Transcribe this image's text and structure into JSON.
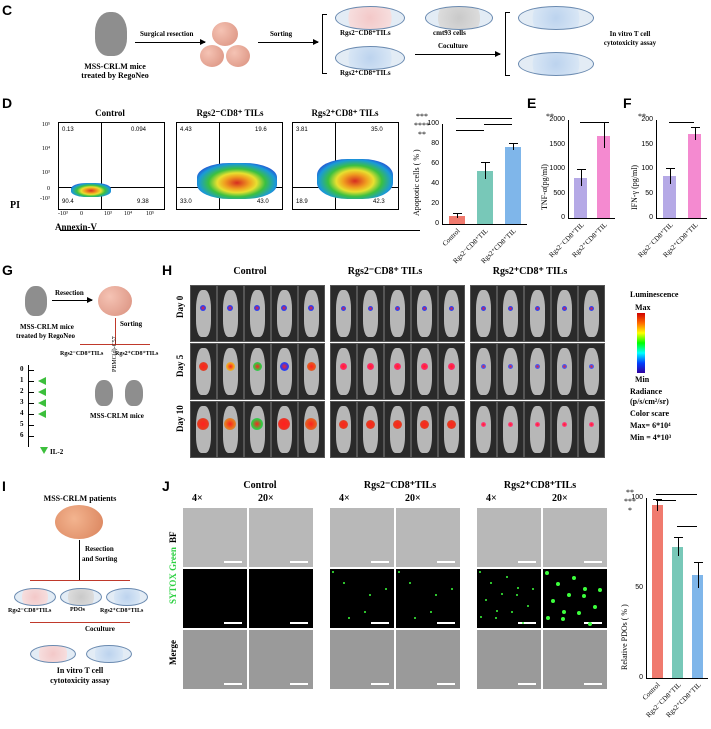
{
  "panels": {
    "C": "C",
    "D": "D",
    "E": "E",
    "F": "F",
    "G": "G",
    "H": "H",
    "I": "I",
    "J": "J"
  },
  "C": {
    "mouse_label_1": "MSS-CRLM mice",
    "mouse_label_2": "treated by RegoNeo",
    "step1": "Surgical resection",
    "step2": "Sorting",
    "neg_dish": "Rgs2⁻CD8⁺TILs",
    "pos_dish": "Rgs2⁺CD8⁺TILs",
    "cmt": "cmt93 cells",
    "coculture": "Coculture",
    "assay_1": "In vitro T cell",
    "assay_2": "cytotoxicity assay"
  },
  "D": {
    "facs": [
      {
        "title": "Control",
        "ul": "0.13",
        "ur": "0.094",
        "ll": "90.4",
        "lr": "9.38"
      },
      {
        "title": "Rgs2⁻CD8⁺ TILs",
        "ul": "4.43",
        "ur": "19.6",
        "ll": "33.0",
        "lr": "43.0"
      },
      {
        "title": "Rgs2⁺CD8⁺ TILs",
        "ul": "3.81",
        "ur": "35.0",
        "ll": "18.9",
        "lr": "42.3"
      }
    ],
    "ytick": [
      "10⁵",
      "10⁴",
      "10³",
      "0",
      "-10³"
    ],
    "xtick": [
      "-10³",
      "0",
      "10³",
      "10⁴",
      "10⁵"
    ],
    "ylabel": "PI",
    "xlabel": "Annexin-V"
  },
  "chart_data": [
    {
      "type": "bar",
      "panel": "D",
      "categories": [
        "Control",
        "Rgs2⁻CD8⁺TIL",
        "Rgs2⁺CD8⁺TIL"
      ],
      "values": [
        8,
        53,
        77
      ],
      "errors": [
        2,
        8,
        3
      ],
      "colors": [
        "#f07a6e",
        "#78c8b8",
        "#7fb6ea"
      ],
      "ylabel": "Apoptotic cells ( % )",
      "ylim": [
        0,
        100
      ],
      "yticks": [
        "0",
        "20",
        "40",
        "60",
        "80",
        "100"
      ],
      "sig": [
        "***",
        "****",
        "**"
      ]
    },
    {
      "type": "bar",
      "panel": "E",
      "categories": [
        "Rgs2⁻CD8⁺TIL",
        "Rgs2⁺CD8⁺TIL"
      ],
      "values": [
        820,
        1680
      ],
      "errors": [
        160,
        250
      ],
      "colors": [
        "#b5a9e6",
        "#f48ad0"
      ],
      "ylabel": "TNF-α(pg/ml)",
      "ylim": [
        0,
        2000
      ],
      "yticks": [
        "0",
        "500",
        "1000",
        "1500",
        "2000"
      ],
      "sig": [
        "**"
      ]
    },
    {
      "type": "bar",
      "panel": "F",
      "categories": [
        "Rgs2⁻CD8⁺TIL",
        "Rgs2⁺CD8⁺TIL"
      ],
      "values": [
        85,
        172
      ],
      "errors": [
        15,
        12
      ],
      "colors": [
        "#b5a9e6",
        "#f48ad0"
      ],
      "ylabel": "IFN-γ (pg/ml)",
      "ylim": [
        0,
        200
      ],
      "yticks": [
        "0",
        "50",
        "100",
        "150",
        "200"
      ],
      "sig": [
        "**"
      ]
    },
    {
      "type": "bar",
      "panel": "J",
      "categories": [
        "Control",
        "Rgs2⁻CD8⁺TIL",
        "Rgs2⁺CD8⁺TIL"
      ],
      "values": [
        96,
        73,
        57
      ],
      "errors": [
        3,
        5,
        7
      ],
      "colors": [
        "#f07a6e",
        "#78c8b8",
        "#7fb6ea"
      ],
      "ylabel": "Relative PDOs ( % )",
      "ylim": [
        0,
        100
      ],
      "yticks": [
        "0",
        "50",
        "100"
      ],
      "sig": [
        "**",
        "***",
        "*"
      ]
    }
  ],
  "G": {
    "resection": "Resection",
    "sorting": "Sorting",
    "mouse_1": "MSS-CRLM mice",
    "mouse_2": "treated by RegoNeo",
    "neg": "Rgs2⁻CD8⁺TILs",
    "pos": "Rgs2⁺CD8⁺TILs",
    "days": [
      "0",
      "1",
      "2",
      "3",
      "4",
      "5",
      "6"
    ],
    "recipient": "MSS-CRLM mice",
    "il2": "IL-2",
    "vert": "PBMC(d)-C57"
  },
  "H": {
    "groups": [
      "Control",
      "Rgs2⁻CD8⁺ TILs",
      "Rgs2⁺CD8⁺ TILs"
    ],
    "days": [
      "Day 0",
      "Day 5",
      "Day 10"
    ],
    "legend_title": "Luminescence",
    "max": "Max",
    "min": "Min",
    "rad_1": "Radiance",
    "rad_2": "(p/s/cm²/sr)",
    "rad_3": "Color scare",
    "rad_max": "Max= 6*10⁴",
    "rad_min": "Min = 4*10³"
  },
  "I": {
    "title": "MSS-CRLM patients",
    "step1": "Resection",
    "step1b": "and Sorting",
    "neg": "Rgs2⁻CD8⁺TILs",
    "mid": "PDOs",
    "pos": "Rgs2⁺CD8⁺TILs",
    "coculture": "Coculture",
    "assay_1": "In vitro T cell",
    "assay_2": "cytotoxicity assay"
  },
  "J": {
    "groups": [
      "Control",
      "Rgs2⁻CD8⁺TILs",
      "Rgs2⁺CD8⁺TILs"
    ],
    "mags": [
      "4×",
      "20×"
    ],
    "rows": [
      "BF",
      "SYTOX Green",
      "Merge"
    ]
  }
}
